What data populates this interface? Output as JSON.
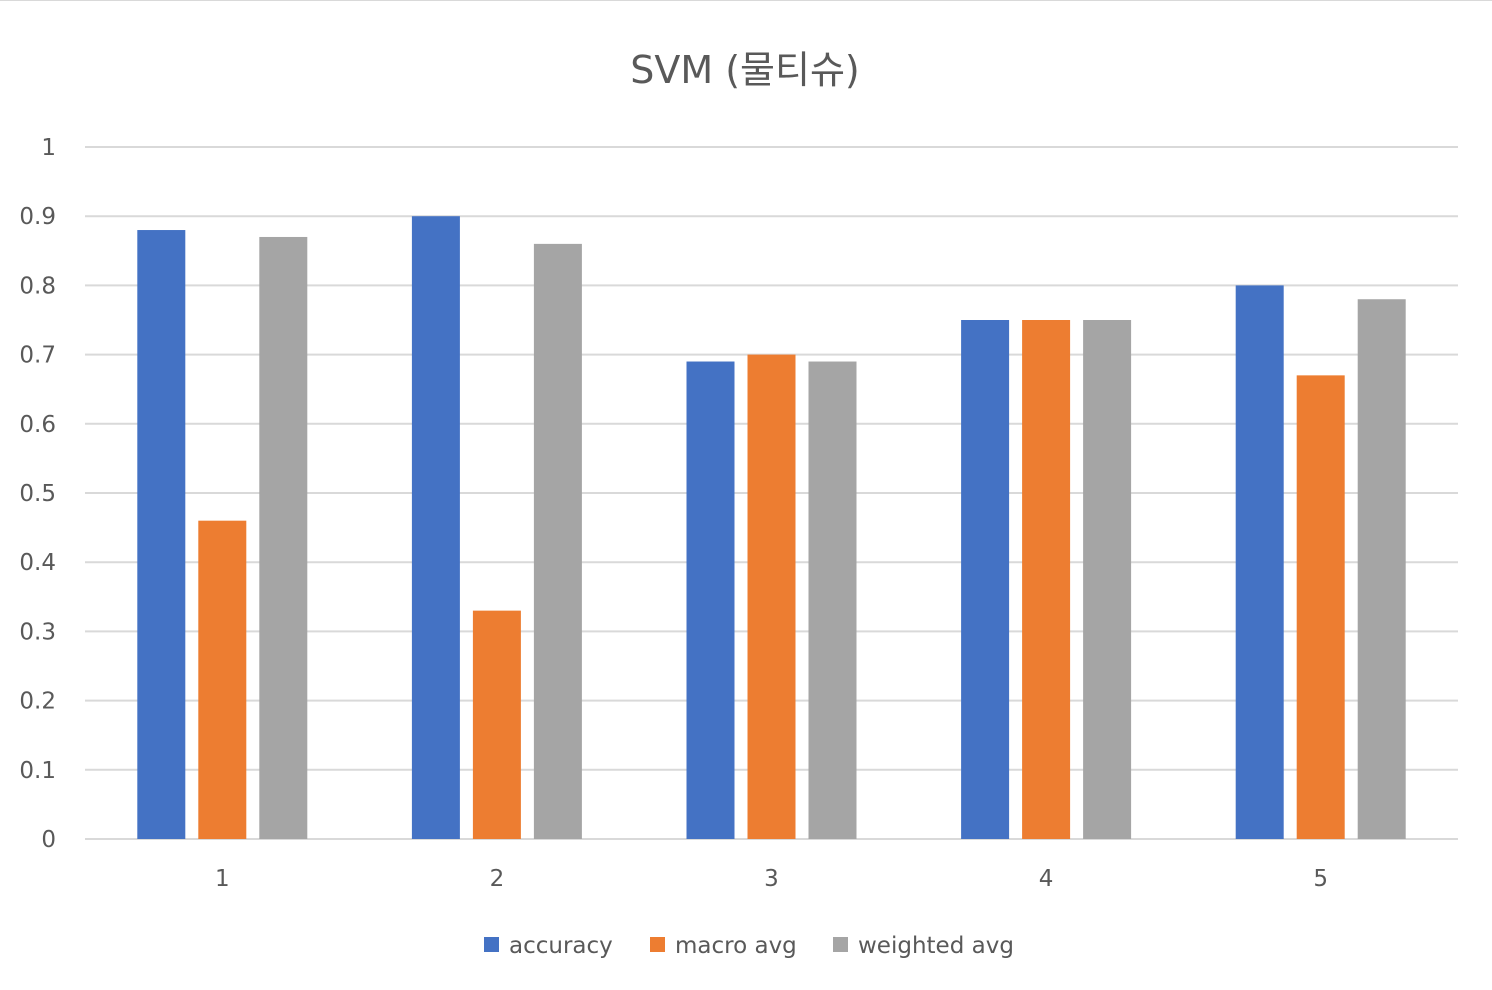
{
  "chart_data": {
    "type": "bar",
    "title": "SVM (물티슈)",
    "xlabel": "",
    "ylabel": "",
    "categories": [
      "1",
      "2",
      "3",
      "4",
      "5"
    ],
    "series": [
      {
        "name": "accuracy",
        "color": "#4472C4",
        "values": [
          0.88,
          0.9,
          0.69,
          0.75,
          0.8
        ]
      },
      {
        "name": "macro avg",
        "color": "#ED7D31",
        "values": [
          0.46,
          0.33,
          0.7,
          0.75,
          0.67
        ]
      },
      {
        "name": "weighted avg",
        "color": "#A5A5A5",
        "values": [
          0.87,
          0.86,
          0.69,
          0.75,
          0.78
        ]
      }
    ],
    "ylim": [
      0,
      1
    ],
    "yticks": [
      "0",
      "0.1",
      "0.2",
      "0.3",
      "0.4",
      "0.5",
      "0.6",
      "0.7",
      "0.8",
      "0.9",
      "1"
    ],
    "grid": true,
    "legend_position": "bottom",
    "colors": {
      "gridline": "#D9D9D9",
      "text": "#595959"
    }
  }
}
